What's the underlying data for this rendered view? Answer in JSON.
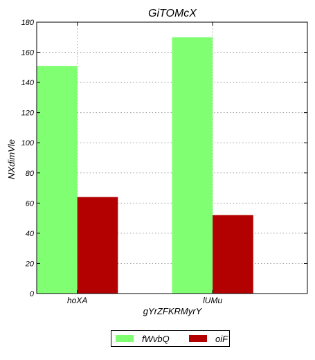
{
  "chart_data": {
    "type": "bar",
    "title": "GiTOMcX",
    "xlabel": "gYrZFKRMyrY",
    "ylabel": "NXdimVle",
    "categories": [
      "hoXA",
      "lUMu"
    ],
    "series": [
      {
        "name": "fWvbQ",
        "color": "#80ff73",
        "values": [
          151,
          170
        ]
      },
      {
        "name": "oiF",
        "color": "#b30000",
        "values": [
          64,
          52
        ]
      }
    ],
    "ylim": [
      0,
      180
    ],
    "yticks": [
      "0",
      "20",
      "40",
      "60",
      "80",
      "100",
      "120",
      "140",
      "160",
      "180"
    ],
    "grid": true,
    "legend_position": "bottom-center"
  }
}
